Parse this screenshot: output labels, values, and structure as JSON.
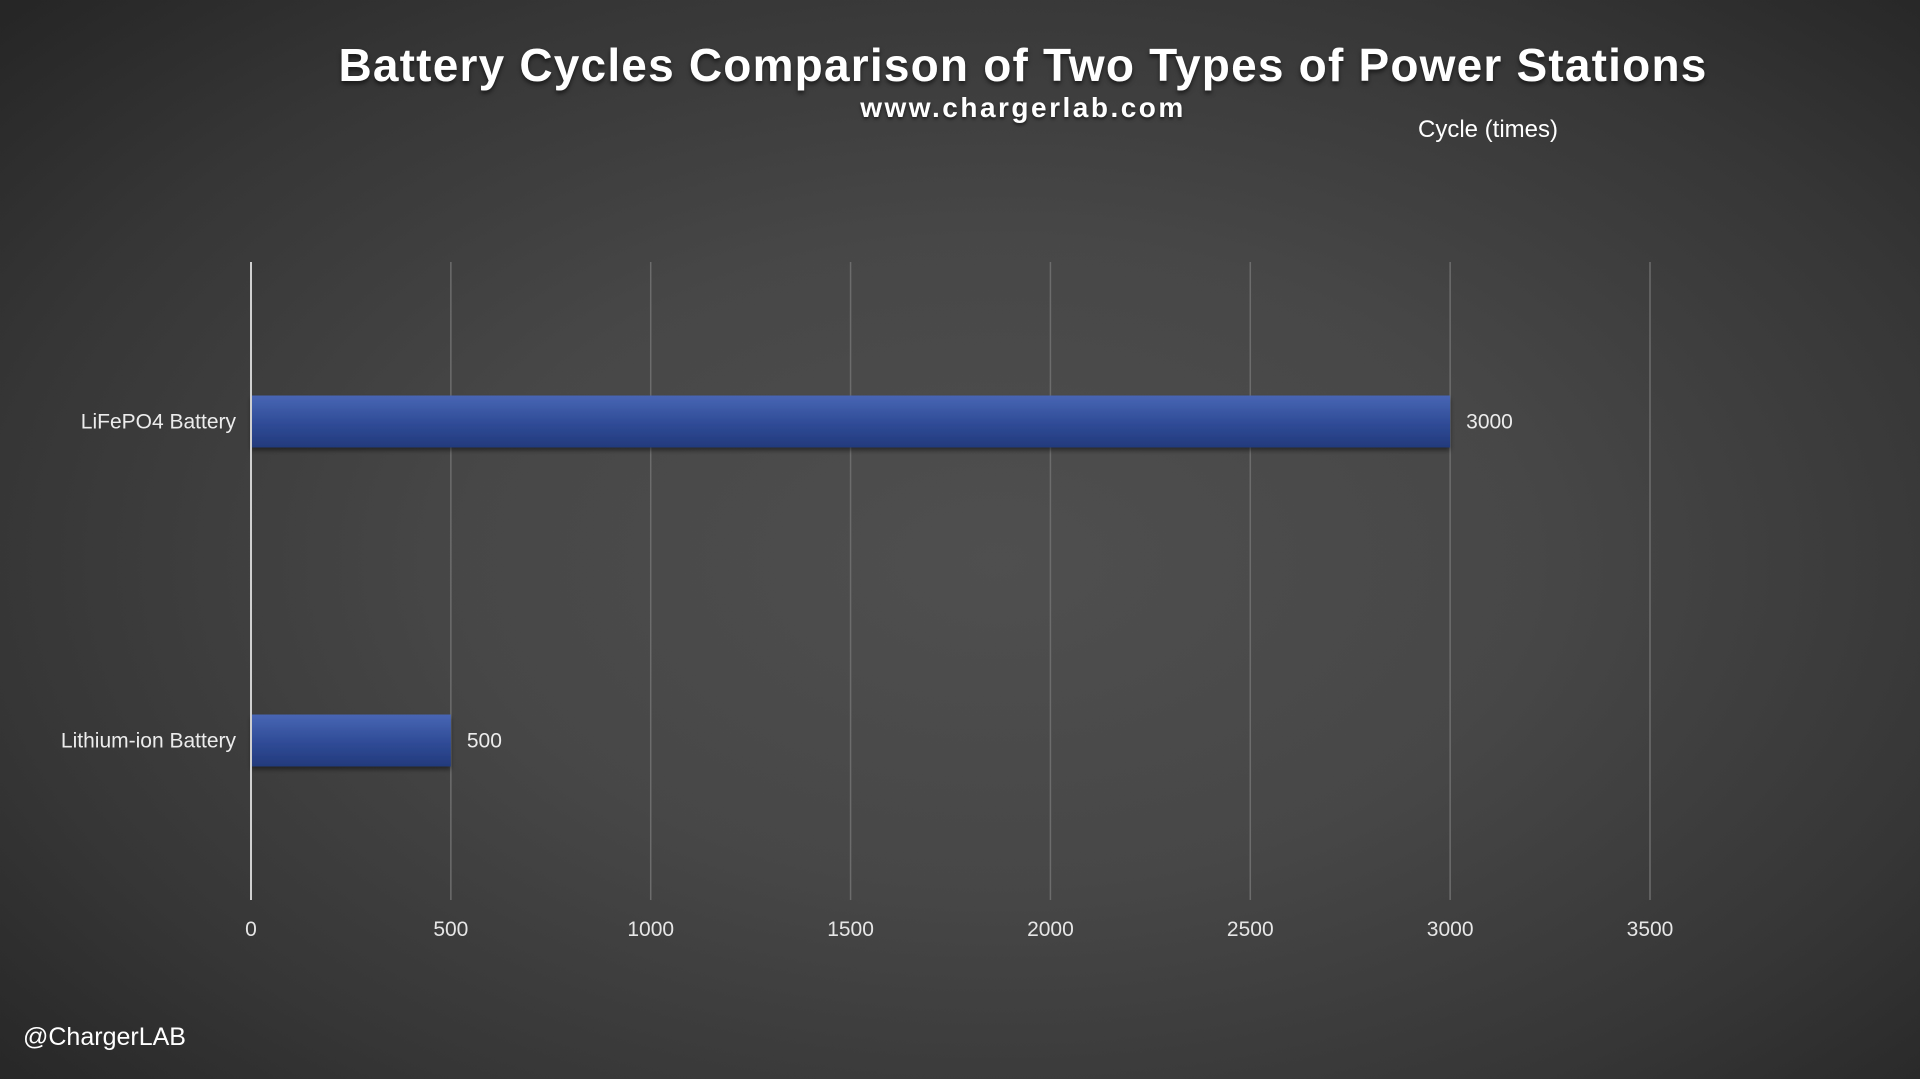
{
  "title": "Battery Cycles Comparison of Two Types of Power Stations",
  "subtitle": "www.chargerlab.com",
  "watermark": "@ChargerLAB",
  "colors": {
    "bar": "#2e4a94",
    "bar_highlight": "#4866b4",
    "grid": "#6c6c6c",
    "axis": "#d0d0d0"
  },
  "chart_data": {
    "type": "bar",
    "orientation": "horizontal",
    "title": "Battery Cycles Comparison of Two Types of Power Stations",
    "subtitle": "www.chargerlab.com",
    "xlabel": "Cycle (times)",
    "ylabel": "",
    "categories": [
      "LiFePO4 Battery",
      "Lithium-ion Battery"
    ],
    "values": [
      3000,
      500
    ],
    "data_labels": [
      "3000",
      "500"
    ],
    "xlim": [
      0,
      3500
    ],
    "xticks": [
      0,
      500,
      1000,
      1500,
      2000,
      2500,
      3000,
      3500
    ],
    "xtick_labels": [
      "0",
      "500",
      "1000",
      "1500",
      "2000",
      "2500",
      "3000",
      "3500"
    ],
    "grid": true,
    "legend": "none"
  }
}
